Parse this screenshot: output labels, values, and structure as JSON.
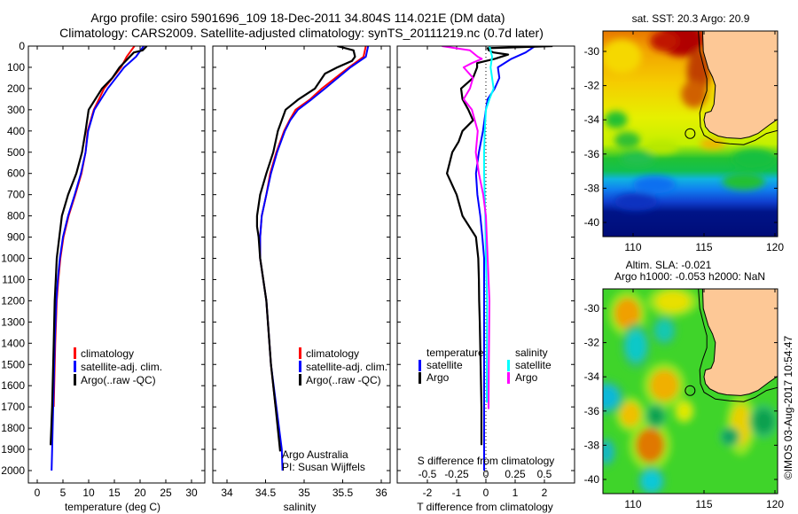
{
  "title_line1": "Argo profile: csiro 5901696_109 18-Dec-2011 34.804S 114.021E (DM data)",
  "title_line2": "Climatology: CARS2009. Satellite-adjusted climatology: synTS_20111219.nc (0.7d later)",
  "credit": "©IMOS 03-Aug-2017 10:54:47",
  "colors": {
    "climatology": "#ff0000",
    "satellite": "#0000ff",
    "argo": "#000000",
    "sal_satellite": "#00ffff",
    "sal_argo": "#ff00ff",
    "land": "#fdc896"
  },
  "chart_data": [
    {
      "type": "line",
      "name": "temperature-profile",
      "xlabel": "temperature (deg C)",
      "ylabel": "",
      "xlim": [
        -1.7,
        32.5
      ],
      "ylim": [
        2058,
        0
      ],
      "xticks": [
        "0",
        "5",
        "10",
        "15",
        "20",
        "25",
        "30"
      ],
      "xtick_values": [
        0,
        5,
        10,
        15,
        20,
        25,
        30
      ],
      "yticks": [
        "0",
        "100",
        "200",
        "300",
        "400",
        "500",
        "600",
        "700",
        "800",
        "900",
        "1000",
        "1100",
        "1200",
        "1300",
        "1400",
        "1500",
        "1600",
        "1700",
        "1800",
        "1900",
        "2000"
      ],
      "legend": [
        "climatology",
        "satellite-adj. clim.",
        "Argo(..raw -QC)"
      ],
      "series": [
        {
          "name": "climatology",
          "color": "#ff0000",
          "depth": [
            0,
            50,
            100,
            200,
            300,
            400,
            500,
            600,
            700,
            800,
            900,
            1000,
            1100,
            1200,
            1400,
            1700
          ],
          "values": [
            18.9,
            17.4,
            16.3,
            13.0,
            11.0,
            9.8,
            9.4,
            8.6,
            7.4,
            6.1,
            5.1,
            4.5,
            4.1,
            3.8,
            3.5,
            3.2
          ]
        },
        {
          "name": "satellite-adj. clim.",
          "color": "#0000ff",
          "depth": [
            0,
            50,
            100,
            200,
            300,
            400,
            500,
            600,
            700,
            800,
            900,
            1000,
            1100,
            1200,
            1400,
            1700,
            2000
          ],
          "values": [
            20.7,
            19.2,
            16.9,
            13.7,
            11.1,
            9.9,
            9.4,
            8.5,
            7.3,
            6.0,
            5.0,
            4.4,
            4.0,
            3.7,
            3.4,
            3.1,
            2.8
          ]
        },
        {
          "name": "Argo(..raw -QC)",
          "color": "#000000",
          "depth": [
            0,
            20,
            30,
            100,
            150,
            200,
            300,
            400,
            500,
            600,
            700,
            800,
            900,
            1000,
            1100,
            1200,
            1400,
            1700,
            1880
          ],
          "values": [
            21.3,
            20.5,
            18.8,
            16.0,
            14.6,
            12.6,
            10.0,
            9.4,
            8.7,
            7.6,
            6.0,
            4.8,
            4.3,
            3.8,
            3.6,
            3.4,
            3.2,
            2.9,
            2.6
          ]
        }
      ]
    },
    {
      "type": "line",
      "name": "salinity-profile",
      "xlabel": "salinity",
      "xlim": [
        33.82,
        36.1
      ],
      "ylim": [
        2058,
        0
      ],
      "xticks": [
        "34",
        "34.5",
        "35",
        "35.5",
        "36"
      ],
      "xtick_values": [
        34,
        34.5,
        35,
        35.5,
        36
      ],
      "legend": [
        "climatology",
        "satellite-adj. clim.",
        "Argo(..raw -QC)"
      ],
      "annotations": [
        "Argo Australia",
        "PI: Susan Wijffels"
      ],
      "series": [
        {
          "name": "climatology",
          "color": "#ff0000",
          "depth": [
            0,
            50,
            100,
            200,
            250,
            300,
            350,
            400,
            500,
            600,
            700,
            800,
            900,
            1000,
            1100,
            1200,
            1500,
            1700
          ],
          "values": [
            35.8,
            35.77,
            35.58,
            35.23,
            35.08,
            34.89,
            34.81,
            34.74,
            34.64,
            34.56,
            34.51,
            34.45,
            34.43,
            34.43,
            34.47,
            34.51,
            34.57,
            34.63
          ]
        },
        {
          "name": "satellite-adj. clim.",
          "color": "#0000ff",
          "depth": [
            0,
            50,
            100,
            200,
            250,
            300,
            350,
            400,
            500,
            600,
            700,
            800,
            900,
            1000,
            1100,
            1200,
            1500,
            1700,
            1900,
            2000
          ],
          "values": [
            35.83,
            35.8,
            35.6,
            35.27,
            35.1,
            34.92,
            34.82,
            34.75,
            34.65,
            34.57,
            34.51,
            34.45,
            34.43,
            34.43,
            34.47,
            34.51,
            34.57,
            34.64,
            34.71,
            34.72
          ]
        },
        {
          "name": "Argo(..raw -QC)",
          "color": "#000000",
          "depth": [
            0,
            20,
            50,
            70,
            100,
            130,
            200,
            250,
            300,
            400,
            500,
            600,
            700,
            800,
            850,
            900,
            1000,
            1100,
            1200,
            1500,
            1700,
            1910
          ],
          "values": [
            35.43,
            35.64,
            35.66,
            35.62,
            35.43,
            35.27,
            35.14,
            34.93,
            34.76,
            34.66,
            34.6,
            34.51,
            34.43,
            34.39,
            34.39,
            34.41,
            34.43,
            34.47,
            34.51,
            34.57,
            34.63,
            34.69
          ]
        }
      ]
    },
    {
      "type": "line",
      "name": "difference-profile",
      "xlabel": "T difference from climatology",
      "xlabel_top": "S difference from climatology",
      "xlim": [
        -3.03,
        3.03
      ],
      "s_xlim": [
        -0.757,
        0.757
      ],
      "ylim": [
        2058,
        0
      ],
      "xticks": [
        "-2",
        "-1",
        "0",
        "1",
        "2"
      ],
      "xtick_values": [
        -2,
        -1,
        0,
        1,
        2
      ],
      "s_xticks": [
        "-0.5",
        "-0.25",
        "0",
        "0.25",
        "0.5"
      ],
      "s_xtick_values": [
        -0.5,
        -0.25,
        0,
        0.25,
        0.5
      ],
      "legend_temperature": {
        "title": "temperature",
        "items": [
          "satellite",
          "Argo"
        ]
      },
      "legend_salinity": {
        "title": "salinity",
        "items": [
          "satellite",
          "Argo"
        ]
      },
      "series": [
        {
          "name": "temperature satellite",
          "quantity": "T",
          "color": "#0000ff",
          "depth": [
            0,
            30,
            60,
            100,
            150,
            200,
            250,
            300,
            400,
            500,
            600,
            700,
            800,
            900,
            1000,
            1200,
            1500,
            1800,
            2000
          ],
          "values": [
            1.68,
            1.36,
            0.87,
            0.41,
            0.46,
            0.3,
            0.06,
            0.0,
            -0.1,
            -0.24,
            -0.34,
            -0.29,
            -0.19,
            -0.12,
            -0.06,
            -0.06,
            -0.06,
            -0.06,
            -0.06
          ]
        },
        {
          "name": "temperature Argo",
          "quantity": "T",
          "color": "#000000",
          "depth": [
            0,
            10,
            20,
            30,
            40,
            60,
            80,
            100,
            150,
            200,
            250,
            300,
            350,
            400,
            450,
            500,
            600,
            700,
            800,
            900,
            1000,
            1100,
            1200,
            1300,
            1700,
            1880
          ],
          "values": [
            2.28,
            0.06,
            0.1,
            0.26,
            0.76,
            0.3,
            -0.3,
            -0.3,
            -0.44,
            -0.85,
            -0.8,
            -0.6,
            -0.44,
            -0.8,
            -0.93,
            -1.15,
            -1.33,
            -1.0,
            -0.8,
            -0.34,
            -0.26,
            -0.24,
            -0.23,
            -0.21,
            -0.15,
            -0.15
          ]
        },
        {
          "name": "salinity satellite",
          "quantity": "S",
          "color": "#00ffff",
          "depth": [
            0,
            50,
            100,
            150,
            200,
            250,
            300,
            400,
            500,
            600,
            800,
            1000,
            1200,
            1500,
            1680
          ],
          "values": [
            0.03,
            0.053,
            0.04,
            0.053,
            0.066,
            0.03,
            0.0,
            -0.01,
            -0.015,
            -0.015,
            -0.005,
            0.0,
            0.01,
            0.008,
            0.008
          ]
        },
        {
          "name": "salinity Argo",
          "quantity": "S",
          "color": "#ff00ff",
          "depth": [
            0,
            20,
            50,
            60,
            80,
            100,
            150,
            200,
            250,
            300,
            400,
            500,
            600,
            700,
            800,
            1000,
            1200,
            1500,
            1710
          ],
          "values": [
            -0.376,
            -0.136,
            -0.07,
            -0.035,
            -0.12,
            -0.19,
            -0.11,
            -0.136,
            -0.19,
            -0.12,
            -0.07,
            -0.086,
            -0.06,
            -0.023,
            0.0,
            0.015,
            0.03,
            0.025,
            0.023
          ]
        }
      ]
    }
  ],
  "maps": {
    "sst": {
      "title": "sat. SST: 20.3 Argo: 20.9",
      "lon_ticks": [
        "110",
        "115",
        "120"
      ],
      "lat_ticks": [
        "-30",
        "-32",
        "-34",
        "-36",
        "-38",
        "-40"
      ],
      "argo_position": [
        114.021,
        -34.804
      ]
    },
    "sla": {
      "title_line1": "Altim. SLA: -0.021",
      "title_line2": "Argo h1000: -0.053 h2000: NaN",
      "lon_ticks": [
        "110",
        "115",
        "120"
      ],
      "lat_ticks": [
        "-30",
        "-32",
        "-34",
        "-36",
        "-38",
        "-40"
      ],
      "argo_position": [
        114.021,
        -34.804
      ]
    }
  }
}
